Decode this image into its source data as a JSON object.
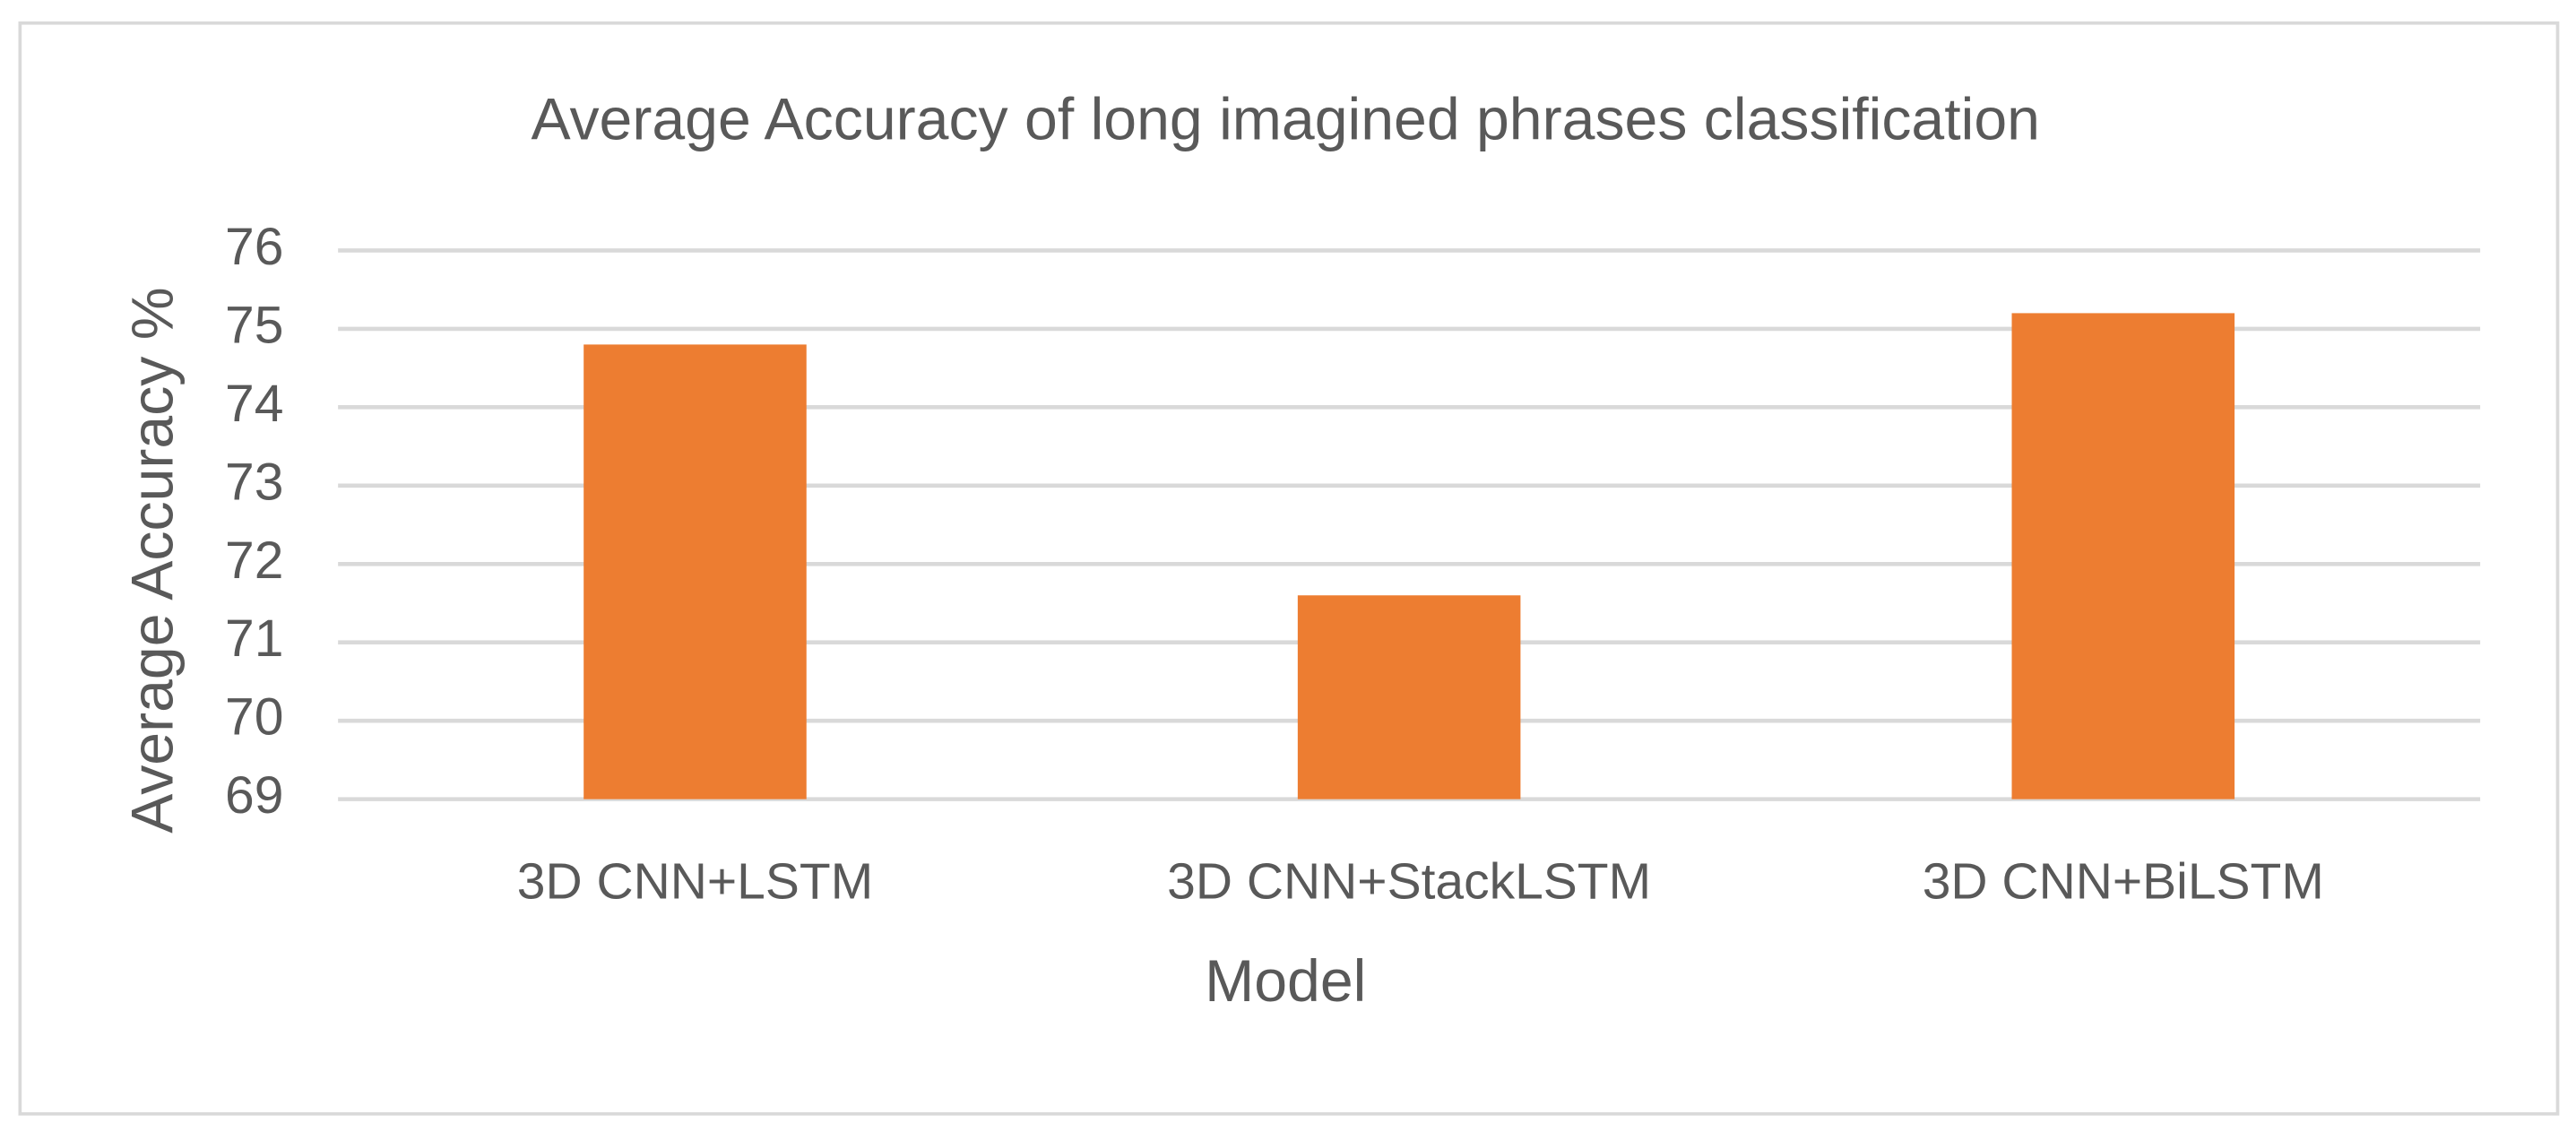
{
  "chart_data": {
    "type": "bar",
    "title": "Average Accuracy of long imagined phrases classification",
    "x_label": "Model",
    "y_label": "Average Accuracy  %",
    "categories": [
      "3D CNN+LSTM",
      "3D CNN+StackLSTM",
      "3D CNN+BiLSTM"
    ],
    "values": [
      74.8,
      71.6,
      75.2
    ],
    "color": "#ed7d31",
    "ylim": [
      69,
      76
    ],
    "yticks": [
      69,
      70,
      71,
      72,
      73,
      74,
      75,
      76
    ],
    "grid": true
  }
}
